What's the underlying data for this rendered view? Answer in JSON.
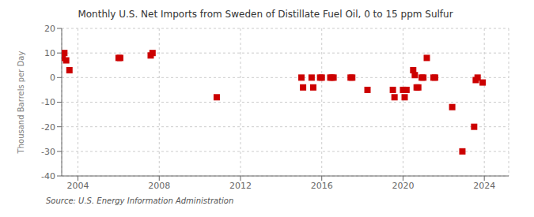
{
  "chart_data": {
    "type": "scatter",
    "title": "Monthly U.S. Net Imports from Sweden of Distillate Fuel Oil, 0 to 15 ppm Sulfur",
    "y_label": "Thousand Barrels per Day",
    "annotations": [
      "Source: U.S. Energy Information Administration"
    ],
    "x": [
      2003.25,
      2003.33,
      2003.42,
      2003.58,
      2006.0,
      2006.08,
      2007.58,
      2007.67,
      2010.83,
      2015.0,
      2015.08,
      2015.5,
      2015.58,
      2015.92,
      2016.0,
      2016.42,
      2016.5,
      2016.58,
      2017.42,
      2017.5,
      2018.25,
      2019.5,
      2019.58,
      2020.0,
      2020.08,
      2020.17,
      2020.5,
      2020.58,
      2020.67,
      2020.75,
      2020.92,
      2021.0,
      2021.17,
      2021.5,
      2021.58,
      2022.42,
      2022.92,
      2023.5,
      2023.58,
      2023.67,
      2023.92
    ],
    "values": [
      8,
      10,
      7,
      3,
      8,
      8,
      9,
      10,
      -8,
      0,
      -4,
      0,
      -4,
      0,
      0,
      0,
      0,
      0,
      0,
      0,
      -5,
      -5,
      -8,
      -5,
      -8,
      -5,
      3,
      1,
      -4,
      -4,
      0,
      0,
      8,
      0,
      0,
      -12,
      -30,
      -20,
      -1,
      0,
      -2
    ],
    "color": "#cc0000",
    "marker": "square",
    "xlim": [
      2003.2,
      2025.2
    ],
    "xticks": [
      2004,
      2008,
      2012,
      2016,
      2020,
      2024
    ],
    "ylim": [
      -40,
      20
    ],
    "yticks": [
      -40,
      -30,
      -20,
      -10,
      0,
      10,
      20
    ],
    "grid": true
  }
}
